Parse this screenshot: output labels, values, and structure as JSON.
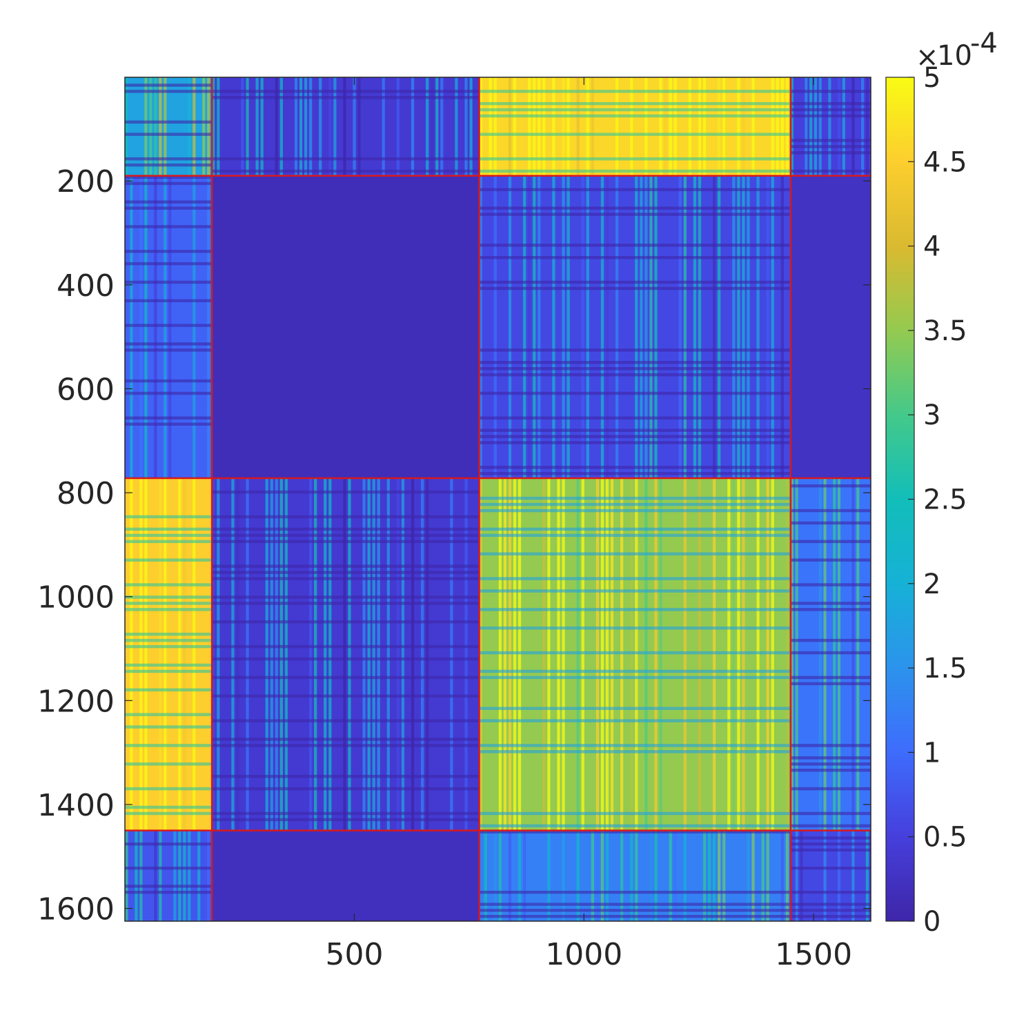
{
  "chart_data": {
    "type": "heatmap",
    "title": "",
    "xlabel": "",
    "ylabel": "",
    "matrix_size": 1624,
    "xlim": [
      1,
      1624
    ],
    "ylim": [
      1,
      1624
    ],
    "y_direction": "reversed",
    "x_ticks": [
      500,
      1000,
      1500
    ],
    "x_tick_labels": [
      "500",
      "1000",
      "1500"
    ],
    "y_ticks": [
      200,
      400,
      600,
      800,
      1000,
      1200,
      1400,
      1600
    ],
    "y_tick_labels": [
      "200",
      "400",
      "600",
      "800",
      "1000",
      "1200",
      "1400",
      "1600"
    ],
    "colorbar": {
      "colormap": "parula",
      "range": [
        0,
        0.0005
      ],
      "ticks": [
        0,
        0.5,
        1,
        1.5,
        2,
        2.5,
        3,
        3.5,
        4,
        4.5,
        5
      ],
      "tick_labels": [
        "0",
        "0.5",
        "1",
        "1.5",
        "2",
        "2.5",
        "3",
        "3.5",
        "4",
        "4.5",
        "5"
      ],
      "exponent_multiplier": "×",
      "exponent_base": "10",
      "exponent": "-4"
    },
    "block_boundaries": [
      190,
      772,
      1450
    ],
    "boundary_color": "#d7191c",
    "blocks": [
      {
        "rows": [
          1,
          190
        ],
        "cols": [
          1,
          190
        ],
        "level": 0.35
      },
      {
        "rows": [
          1,
          190
        ],
        "cols": [
          190,
          772
        ],
        "level": 0.08
      },
      {
        "rows": [
          1,
          190
        ],
        "cols": [
          772,
          1450
        ],
        "level": 0.92
      },
      {
        "rows": [
          1,
          190
        ],
        "cols": [
          1450,
          1624
        ],
        "level": 0.1
      },
      {
        "rows": [
          190,
          772
        ],
        "cols": [
          1,
          190
        ],
        "level": 0.18
      },
      {
        "rows": [
          190,
          772
        ],
        "cols": [
          190,
          772
        ],
        "level": 0.03
      },
      {
        "rows": [
          190,
          772
        ],
        "cols": [
          772,
          1450
        ],
        "level": 0.12
      },
      {
        "rows": [
          190,
          772
        ],
        "cols": [
          1450,
          1624
        ],
        "level": 0.05
      },
      {
        "rows": [
          772,
          1450
        ],
        "cols": [
          1,
          190
        ],
        "level": 0.9
      },
      {
        "rows": [
          772,
          1450
        ],
        "cols": [
          190,
          772
        ],
        "level": 0.08
      },
      {
        "rows": [
          772,
          1450
        ],
        "cols": [
          772,
          1450
        ],
        "level": 0.7
      },
      {
        "rows": [
          772,
          1450
        ],
        "cols": [
          1450,
          1624
        ],
        "level": 0.22
      },
      {
        "rows": [
          1450,
          1624
        ],
        "cols": [
          1,
          190
        ],
        "level": 0.15
      },
      {
        "rows": [
          1450,
          1624
        ],
        "cols": [
          190,
          772
        ],
        "level": 0.04
      },
      {
        "rows": [
          1450,
          1624
        ],
        "cols": [
          772,
          1450
        ],
        "level": 0.25
      },
      {
        "rows": [
          1450,
          1624
        ],
        "cols": [
          1450,
          1624
        ],
        "level": 0.12
      }
    ],
    "grid": false,
    "legend": "colorbar-right"
  }
}
